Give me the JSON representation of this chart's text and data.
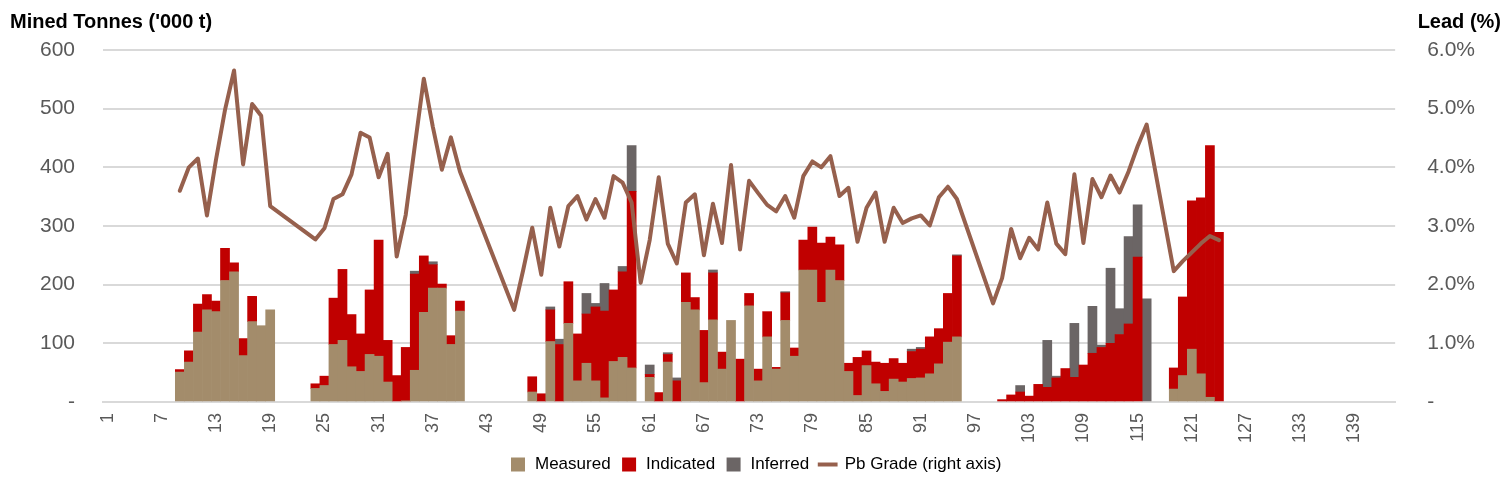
{
  "chart_data": {
    "type": "bar",
    "stacked": true,
    "ylabel": "Mined Tonnes ('000 t)",
    "y2label": "Lead (%)",
    "categories": [
      "1",
      null,
      null,
      null,
      null,
      null,
      "7",
      null,
      null,
      null,
      null,
      null,
      "13",
      null,
      null,
      null,
      null,
      null,
      "19",
      null,
      null,
      null,
      null,
      null,
      "25",
      null,
      null,
      null,
      null,
      null,
      "31",
      null,
      null,
      null,
      null,
      null,
      "37",
      null,
      null,
      null,
      null,
      null,
      "43",
      null,
      null,
      null,
      null,
      null,
      "49",
      null,
      null,
      null,
      null,
      null,
      "55",
      null,
      null,
      null,
      null,
      null,
      "61",
      null,
      null,
      null,
      null,
      null,
      "67",
      null,
      null,
      null,
      null,
      null,
      "73",
      null,
      null,
      null,
      null,
      null,
      "79",
      null,
      null,
      null,
      null,
      null,
      "85",
      null,
      null,
      null,
      null,
      null,
      "91",
      null,
      null,
      null,
      null,
      null,
      "97",
      null,
      null,
      null,
      null,
      null,
      "103",
      null,
      null,
      null,
      null,
      null,
      "109",
      null,
      null,
      null,
      null,
      null,
      "115",
      null,
      null,
      null,
      null,
      null,
      "121",
      null,
      null,
      null,
      null,
      null,
      "127",
      null,
      null,
      null,
      null,
      null,
      "133",
      null,
      null,
      null,
      null,
      null,
      "139",
      null,
      null,
      null,
      null
    ],
    "series": [
      {
        "name": "Measured",
        "color": "#a38c6b",
        "values": [
          null,
          null,
          null,
          null,
          null,
          null,
          null,
          null,
          51,
          68,
          119,
          157,
          154,
          207,
          222,
          79,
          137,
          130,
          157,
          null,
          null,
          null,
          null,
          23,
          28,
          98,
          105,
          60,
          52,
          81,
          78,
          34,
          null,
          2,
          54,
          153,
          194,
          194,
          98,
          155,
          null,
          null,
          null,
          null,
          null,
          null,
          null,
          17,
          null,
          103,
          null,
          134,
          36,
          66,
          36,
          7,
          69,
          76,
          58,
          null,
          42,
          null,
          68,
          null,
          170,
          157,
          33,
          140,
          56,
          139,
          null,
          164,
          36,
          111,
          56,
          139,
          78,
          225,
          225,
          170,
          225,
          207,
          52,
          11,
          62,
          31,
          18,
          39,
          34,
          40,
          41,
          48,
          65,
          102,
          111,
          null,
          null,
          null,
          null,
          null,
          null,
          null,
          null,
          null,
          null,
          null,
          null,
          null,
          null,
          null,
          null,
          null,
          null,
          null,
          null,
          null,
          null,
          null,
          22,
          45,
          90,
          48,
          8,
          null,
          null,
          null,
          null,
          null,
          null,
          null,
          null,
          null,
          null,
          null,
          null,
          null,
          null,
          null,
          null,
          null,
          null,
          null,
          null
        ]
      },
      {
        "name": "Indicated",
        "color": "#c00000",
        "values": [
          null,
          null,
          null,
          null,
          null,
          null,
          null,
          null,
          4,
          19,
          48,
          26,
          18,
          55,
          15,
          29,
          43,
          null,
          null,
          null,
          null,
          null,
          null,
          8,
          16,
          79,
          121,
          89,
          64,
          110,
          198,
          71,
          45,
          91,
          164,
          96,
          40,
          7,
          15,
          17,
          null,
          null,
          null,
          null,
          null,
          null,
          null,
          26,
          14,
          54,
          98,
          71,
          80,
          84,
          126,
          148,
          122,
          146,
          301,
          null,
          5,
          16,
          13,
          36,
          50,
          21,
          89,
          80,
          29,
          null,
          73,
          21,
          20,
          43,
          3,
          47,
          14,
          51,
          73,
          101,
          56,
          61,
          14,
          65,
          25,
          37,
          48,
          35,
          32,
          46,
          49,
          63,
          60,
          83,
          138,
          null,
          null,
          null,
          null,
          4,
          12,
          17,
          10,
          30,
          25,
          41,
          57,
          42,
          63,
          83,
          93,
          100,
          115,
          133,
          247,
          null,
          null,
          null,
          36,
          134,
          253,
          300,
          429,
          289,
          null,
          null,
          null,
          null,
          null,
          null,
          null,
          null,
          null,
          null,
          null,
          null,
          null,
          null,
          null,
          null,
          null,
          null,
          null
        ]
      },
      {
        "name": "Inferred",
        "color": "#6b6565",
        "values": [
          null,
          null,
          null,
          null,
          null,
          null,
          null,
          null,
          null,
          null,
          null,
          null,
          null,
          null,
          null,
          null,
          null,
          null,
          null,
          null,
          null,
          null,
          null,
          null,
          null,
          null,
          null,
          null,
          null,
          null,
          null,
          null,
          null,
          null,
          5,
          null,
          5,
          null,
          null,
          null,
          null,
          null,
          null,
          null,
          null,
          null,
          null,
          null,
          null,
          5,
          9,
          null,
          null,
          35,
          6,
          47,
          null,
          9,
          78,
          null,
          16,
          null,
          3,
          5,
          null,
          null,
          null,
          5,
          null,
          null,
          null,
          null,
          null,
          null,
          null,
          2,
          null,
          null,
          null,
          null,
          null,
          null,
          null,
          null,
          null,
          null,
          null,
          null,
          null,
          4,
          3,
          null,
          null,
          null,
          2,
          null,
          null,
          null,
          null,
          null,
          null,
          11,
          null,
          null,
          80,
          3,
          null,
          92,
          null,
          80,
          4,
          128,
          44,
          149,
          89,
          176,
          null,
          null,
          null,
          null,
          null,
          null,
          null,
          null,
          null,
          null,
          null,
          null,
          null,
          null,
          null,
          null,
          null,
          null,
          null,
          null,
          null,
          null,
          null,
          null,
          null,
          null,
          null
        ]
      },
      {
        "name": "Pb Grade (right axis)",
        "type": "line",
        "axis": "y2",
        "color": "#96604d",
        "values": [
          null,
          null,
          null,
          null,
          null,
          null,
          null,
          null,
          3.6,
          4.0,
          4.15,
          3.18,
          4.13,
          4.98,
          5.65,
          4.05,
          5.08,
          4.88,
          3.34,
          null,
          null,
          null,
          null,
          2.77,
          2.96,
          3.46,
          3.54,
          3.88,
          4.59,
          4.51,
          3.83,
          4.23,
          2.48,
          3.19,
          4.36,
          5.51,
          4.69,
          3.96,
          4.51,
          3.93,
          null,
          null,
          null,
          null,
          null,
          1.57,
          2.25,
          2.97,
          2.17,
          3.31,
          2.65,
          3.34,
          3.51,
          3.11,
          3.46,
          3.14,
          3.85,
          3.74,
          3.4,
          2.03,
          2.76,
          3.83,
          2.7,
          2.36,
          3.4,
          3.54,
          2.5,
          3.38,
          2.71,
          4.04,
          2.6,
          3.77,
          3.56,
          3.36,
          3.25,
          3.51,
          3.14,
          3.85,
          4.1,
          4.0,
          4.19,
          3.51,
          3.65,
          2.73,
          3.31,
          3.57,
          2.73,
          3.31,
          3.05,
          3.13,
          3.18,
          3.01,
          3.49,
          3.67,
          3.46,
          null,
          null,
          null,
          1.68,
          2.11,
          2.95,
          2.45,
          2.8,
          2.6,
          3.4,
          2.7,
          2.52,
          3.88,
          2.71,
          3.8,
          3.49,
          3.86,
          3.57,
          3.93,
          4.36,
          4.73,
          null,
          null,
          2.23,
          2.4,
          2.55,
          2.7,
          2.83,
          2.76,
          null,
          null,
          null,
          null,
          null,
          null,
          null,
          null,
          null,
          null,
          null,
          null,
          null,
          null,
          null,
          null,
          null,
          null,
          null
        ]
      }
    ],
    "ylim": [
      0,
      600
    ],
    "yticks": [
      {
        "value": 0,
        "label": "-"
      },
      100,
      200,
      300,
      400,
      500,
      600
    ],
    "y2lim": [
      0,
      6
    ],
    "y2ticks": [
      {
        "value": 0,
        "label": "-"
      },
      {
        "value": 1,
        "label": "1.0%"
      },
      {
        "value": 2,
        "label": "2.0%"
      },
      {
        "value": 3,
        "label": "3.0%"
      },
      {
        "value": 4,
        "label": "4.0%"
      },
      {
        "value": 5,
        "label": "5.0%"
      },
      {
        "value": 6,
        "label": "6.0%"
      }
    ],
    "grid": "y",
    "legend": "bottom",
    "marker": "none",
    "line_style": "solid"
  }
}
